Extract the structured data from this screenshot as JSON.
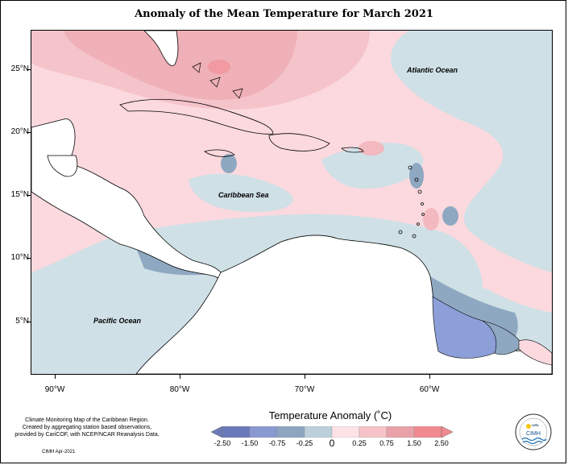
{
  "title": "Anomaly of the Mean Temperature for March 2021",
  "map": {
    "lat_labels": [
      "25°N",
      "20°N",
      "15°N",
      "10°N",
      "5°N"
    ],
    "lon_labels": [
      "90°W",
      "80°W",
      "70°W",
      "60°W"
    ],
    "extent": {
      "lon": [
        -92,
        -50
      ],
      "lat": [
        1.5,
        28.5
      ]
    },
    "ocean_labels": {
      "atlantic": "Atlantic Ocean",
      "caribbean": "Caribbean Sea",
      "pacific": "Pacific Ocean"
    }
  },
  "legend": {
    "title": "Temperature Anomaly (˚C)",
    "tick_labels": [
      "-2.50",
      "-1.50",
      "-0.75",
      "-0.25",
      "0",
      "0.25",
      "0.75",
      "1.50",
      "2.50"
    ],
    "colors": [
      "#6a79b7",
      "#8a99d0",
      "#8da6c0",
      "#bcd0dc",
      "#d8e5ea",
      "#fde2e6",
      "#f6c3c9",
      "#e9a2aa",
      "#f08a90"
    ]
  },
  "colors": {
    "warm_light": "#fbd9de",
    "warm_mid": "#f2b9c0",
    "warm_strong": "#f19aa2",
    "cool_light": "#cfe0e6",
    "cool_mid": "#8fa8c2",
    "cool_strong": "#8d9fd8",
    "land": "#ffffff"
  },
  "credits": {
    "description": "Climate Monitoring Map of the Caribbean Region. Created by aggregating station based observations, provided by CariCOF, with NCEP/NCAR Reanalysis Data.",
    "source": "CIMH Apr-2021"
  },
  "logo": {
    "text": "CIMH"
  }
}
